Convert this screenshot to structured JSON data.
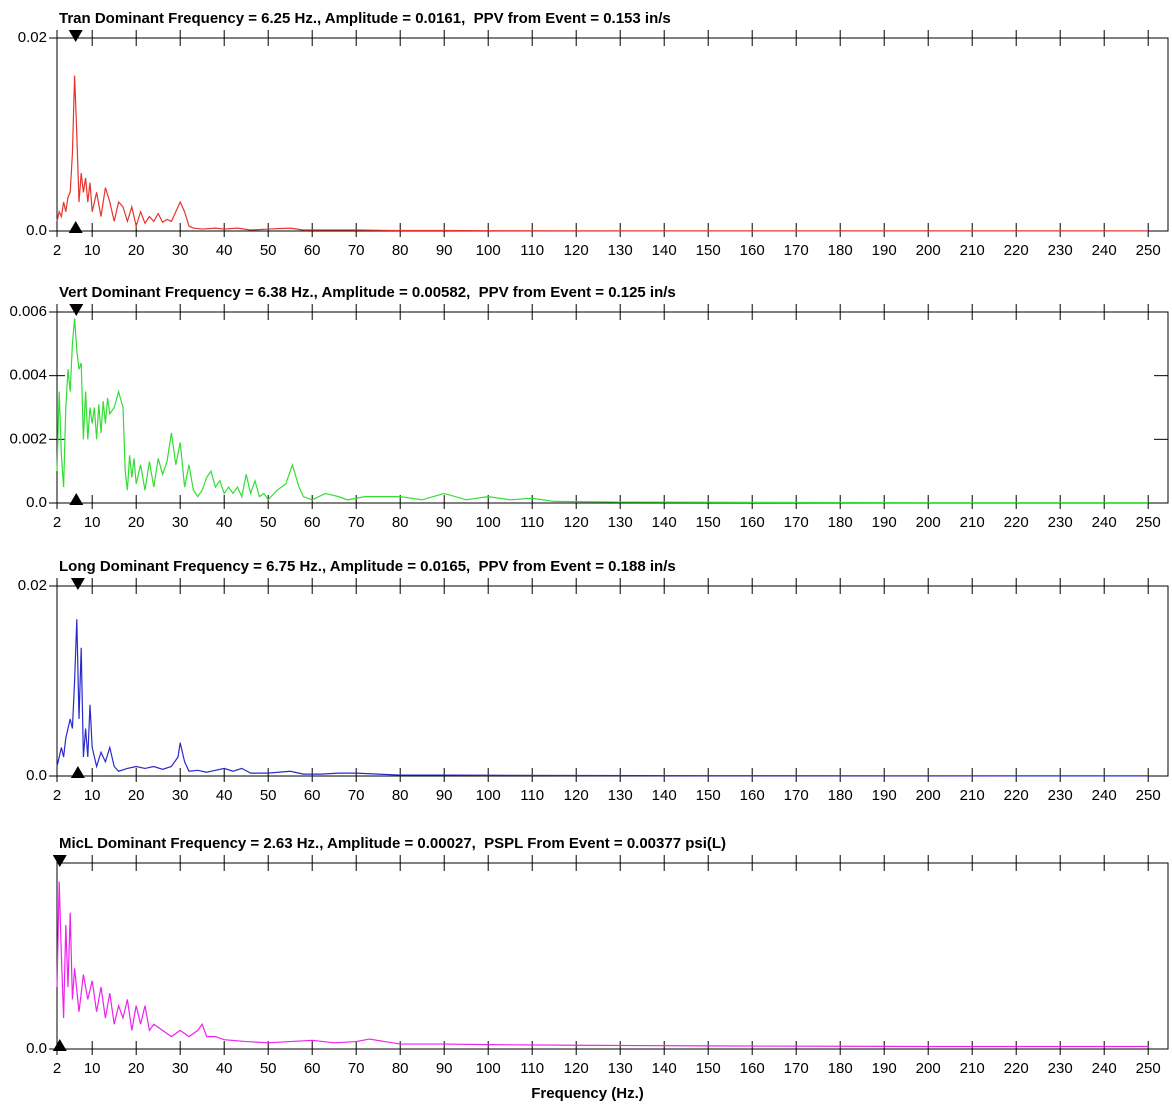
{
  "chart_data": [
    {
      "type": "line",
      "title": "Tran Dominant Frequency = 6.25 Hz., Amplitude = 0.0161,  PPV from Event = 0.153 in/s",
      "color": "#e8332e",
      "marker_x": 6.25,
      "x": [
        2,
        2.5,
        3,
        3.5,
        4,
        4.5,
        5,
        5.5,
        6,
        6.5,
        7,
        7.5,
        8,
        8.5,
        9,
        9.5,
        10,
        11,
        12,
        13,
        14,
        15,
        16,
        17,
        18,
        19,
        20,
        21,
        22,
        23,
        24,
        25,
        26,
        27,
        28,
        29,
        30,
        31,
        32,
        33,
        35,
        38,
        40,
        43,
        46,
        50,
        55,
        58,
        62,
        70,
        80,
        90,
        100,
        120,
        150,
        200,
        250
      ],
      "values": [
        0.001,
        0.002,
        0.0015,
        0.003,
        0.002,
        0.0035,
        0.004,
        0.008,
        0.0161,
        0.01,
        0.003,
        0.006,
        0.004,
        0.0055,
        0.003,
        0.005,
        0.002,
        0.004,
        0.0015,
        0.0045,
        0.003,
        0.001,
        0.003,
        0.0025,
        0.001,
        0.0025,
        0.0005,
        0.002,
        0.0008,
        0.0015,
        0.001,
        0.0018,
        0.0009,
        0.0012,
        0.001,
        0.002,
        0.003,
        0.002,
        0.0005,
        0.0003,
        0.0002,
        0.0003,
        0.0002,
        0.0003,
        0.0001,
        0.0002,
        0.0003,
        0.0001,
        0.0001,
        0.0001,
        5e-05,
        5e-05,
        3e-05,
        2e-05,
        1e-05,
        1e-05,
        1e-05
      ],
      "xlim": [
        2,
        254.5
      ],
      "xticks": [
        2,
        10,
        20,
        30,
        40,
        50,
        60,
        70,
        80,
        90,
        100,
        110,
        120,
        130,
        140,
        150,
        160,
        170,
        180,
        190,
        200,
        210,
        220,
        230,
        240,
        250
      ],
      "ylim": [
        0,
        0.02
      ],
      "yticks": [
        {
          "value": 0,
          "label": "0.0"
        },
        0.02
      ]
    },
    {
      "type": "line",
      "title": "Vert Dominant Frequency = 6.38 Hz., Amplitude = 0.00582,  PPV from Event = 0.125 in/s",
      "color": "#33dd33",
      "marker_x": 6.38,
      "x": [
        2,
        2.5,
        3,
        3.5,
        4,
        4.5,
        5,
        5.5,
        6,
        6.5,
        7,
        7.5,
        8,
        8.5,
        9,
        9.5,
        10,
        10.5,
        11,
        11.5,
        12,
        12.5,
        13,
        13.5,
        14,
        15,
        16,
        17,
        17.5,
        18,
        18.5,
        19,
        19.5,
        20,
        21,
        22,
        23,
        24,
        25,
        26,
        27,
        28,
        29,
        30,
        31,
        32,
        33,
        34,
        35,
        36,
        37,
        38,
        39,
        40,
        41,
        42,
        43,
        44,
        45,
        46,
        47,
        48,
        49,
        50,
        52,
        54,
        55.5,
        57,
        58,
        60,
        63,
        66,
        68,
        72,
        76,
        80,
        85,
        90,
        95,
        100,
        105,
        110,
        115,
        130,
        160,
        200,
        250
      ],
      "values": [
        0.001,
        0.0035,
        0.0015,
        0.0005,
        0.003,
        0.0042,
        0.0035,
        0.005,
        0.0058,
        0.0048,
        0.0042,
        0.0044,
        0.002,
        0.0035,
        0.002,
        0.003,
        0.0025,
        0.003,
        0.002,
        0.0031,
        0.0022,
        0.0032,
        0.0025,
        0.0033,
        0.0028,
        0.003,
        0.0035,
        0.003,
        0.001,
        0.0004,
        0.0015,
        0.0008,
        0.0014,
        0.0006,
        0.0012,
        0.0004,
        0.0013,
        0.0005,
        0.0014,
        0.0009,
        0.0013,
        0.0022,
        0.0012,
        0.0019,
        0.0005,
        0.0012,
        0.0004,
        0.0002,
        0.0004,
        0.0008,
        0.001,
        0.0005,
        0.0007,
        0.0003,
        0.0005,
        0.0003,
        0.0005,
        0.0002,
        0.0009,
        0.0003,
        0.0007,
        0.0002,
        0.0003,
        0.0001,
        0.0004,
        0.0006,
        0.0012,
        0.0005,
        0.0002,
        0.0001,
        0.0003,
        0.0002,
        0.0001,
        0.0002,
        0.0002,
        0.0002,
        0.0001,
        0.0003,
        0.0001,
        0.0002,
        0.0001,
        0.00015,
        5e-05,
        3e-05,
        2e-05,
        1e-05,
        1e-05
      ],
      "xlim": [
        2,
        254.5
      ],
      "xticks": [
        2,
        10,
        20,
        30,
        40,
        50,
        60,
        70,
        80,
        90,
        100,
        110,
        120,
        130,
        140,
        150,
        160,
        170,
        180,
        190,
        200,
        210,
        220,
        230,
        240,
        250
      ],
      "ylim": [
        0,
        0.006
      ],
      "yticks": [
        {
          "value": 0,
          "label": "0.0"
        },
        0.002,
        0.004,
        0.006
      ]
    },
    {
      "type": "line",
      "title": "Long Dominant Frequency = 6.75 Hz., Amplitude = 0.0165,  PPV from Event = 0.188 in/s",
      "color": "#2a2acc",
      "marker_x": 6.75,
      "x": [
        2,
        3,
        3.5,
        4,
        5,
        5.5,
        6,
        6.5,
        7,
        7.5,
        8,
        8.5,
        9,
        9.5,
        10,
        11,
        12,
        13,
        14,
        15,
        16,
        18,
        20,
        22,
        24,
        26,
        28,
        29.5,
        30,
        31,
        32,
        34,
        36,
        38,
        40,
        42,
        44,
        46,
        50,
        55,
        58,
        62,
        66,
        70,
        75,
        80,
        90,
        100,
        120,
        150,
        200,
        250
      ],
      "values": [
        0.001,
        0.003,
        0.002,
        0.004,
        0.006,
        0.005,
        0.01,
        0.0165,
        0.006,
        0.0135,
        0.002,
        0.005,
        0.002,
        0.0075,
        0.003,
        0.001,
        0.0025,
        0.0015,
        0.003,
        0.001,
        0.0005,
        0.0008,
        0.001,
        0.0008,
        0.001,
        0.0007,
        0.001,
        0.002,
        0.0035,
        0.0015,
        0.0005,
        0.0006,
        0.0004,
        0.0006,
        0.0008,
        0.0005,
        0.0008,
        0.0003,
        0.0003,
        0.0005,
        0.0002,
        0.0002,
        0.0003,
        0.0003,
        0.0002,
        0.0001,
        0.0001,
        8e-05,
        5e-05,
        3e-05,
        2e-05,
        1e-05
      ],
      "xlim": [
        2,
        254.5
      ],
      "xticks": [
        2,
        10,
        20,
        30,
        40,
        50,
        60,
        70,
        80,
        90,
        100,
        110,
        120,
        130,
        140,
        150,
        160,
        170,
        180,
        190,
        200,
        210,
        220,
        230,
        240,
        250
      ],
      "ylim": [
        0,
        0.02
      ],
      "yticks": [
        {
          "value": 0,
          "label": "0.0"
        },
        0.02
      ]
    },
    {
      "type": "line",
      "title": "MicL Dominant Frequency = 2.63 Hz., Amplitude = 0.00027,  PSPL From Event = 0.00377 psi(L)",
      "color": "#ee22ee",
      "marker_x": 2.63,
      "x": [
        2,
        2.5,
        3,
        3.5,
        4,
        4.5,
        5,
        5.5,
        6,
        7,
        8,
        9,
        10,
        11,
        12,
        13,
        14,
        15,
        16,
        17,
        18,
        19,
        20,
        21,
        22,
        23,
        24,
        26,
        28,
        30,
        32,
        34,
        35,
        36,
        38,
        40,
        45,
        50,
        55,
        60,
        65,
        70,
        73,
        80,
        90,
        100,
        120,
        150,
        200,
        250
      ],
      "values": [
        0.0001,
        0.00027,
        0.00015,
        5e-05,
        0.0002,
        0.0001,
        0.00022,
        8e-05,
        0.00013,
        6e-05,
        0.00012,
        8e-05,
        0.00011,
        6e-05,
        0.0001,
        5e-05,
        9e-05,
        4e-05,
        7e-05,
        5e-05,
        8e-05,
        3e-05,
        7e-05,
        4e-05,
        7e-05,
        3e-05,
        4e-05,
        3e-05,
        2e-05,
        3e-05,
        2e-05,
        3e-05,
        4e-05,
        2e-05,
        2e-05,
        1.5e-05,
        1.2e-05,
        1e-05,
        1.2e-05,
        1.4e-05,
        1e-05,
        1.2e-05,
        1.6e-05,
        8e-06,
        8e-06,
        7e-06,
        6e-06,
        5e-06,
        4e-06,
        4e-06
      ],
      "xlim": [
        2,
        254.5
      ],
      "xticks": [
        2,
        10,
        20,
        30,
        40,
        50,
        60,
        70,
        80,
        90,
        100,
        110,
        120,
        130,
        140,
        150,
        160,
        170,
        180,
        190,
        200,
        210,
        220,
        230,
        240,
        250
      ],
      "ylim": [
        0,
        0.0003
      ],
      "yticks": [
        {
          "value": 0,
          "label": "0.0"
        }
      ],
      "xlabel": "Frequency (Hz.)"
    }
  ]
}
